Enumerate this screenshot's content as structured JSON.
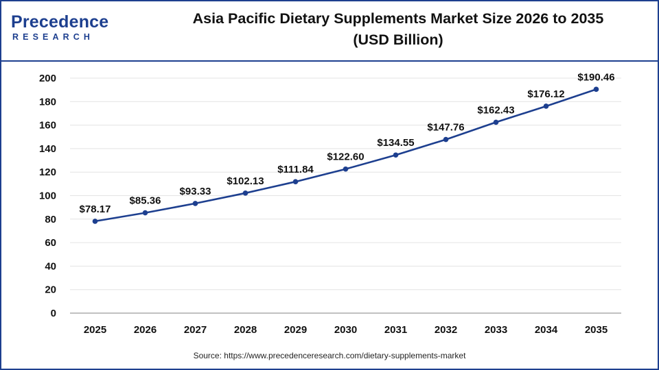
{
  "brand": {
    "name_word": "Precedence",
    "name_sub": "RESEARCH"
  },
  "chart_data": {
    "type": "line",
    "title": "Asia Pacific Dietary Supplements Market Size 2026 to 2035",
    "subtitle": "(USD Billion)",
    "categories": [
      "2025",
      "2026",
      "2027",
      "2028",
      "2029",
      "2030",
      "2031",
      "2032",
      "2033",
      "2034",
      "2035"
    ],
    "series": [
      {
        "values": [
          78.17,
          85.36,
          93.33,
          102.13,
          111.84,
          122.6,
          134.55,
          147.76,
          162.43,
          176.12,
          190.46
        ],
        "labels": [
          "$78.17",
          "$85.36",
          "$93.33",
          "$102.13",
          "$111.84",
          "$122.60",
          "$134.55",
          "$147.76",
          "$162.43",
          "$176.12",
          "$190.46"
        ],
        "color": "#1d3f8f"
      }
    ],
    "ylim": [
      0,
      200
    ],
    "yticks": [
      0,
      20,
      40,
      60,
      80,
      100,
      120,
      140,
      160,
      180,
      200
    ],
    "grid": true,
    "legend": "none",
    "xlabel": "",
    "ylabel": ""
  },
  "source": "Source: https://www.precedenceresearch.com/dietary-supplements-market"
}
